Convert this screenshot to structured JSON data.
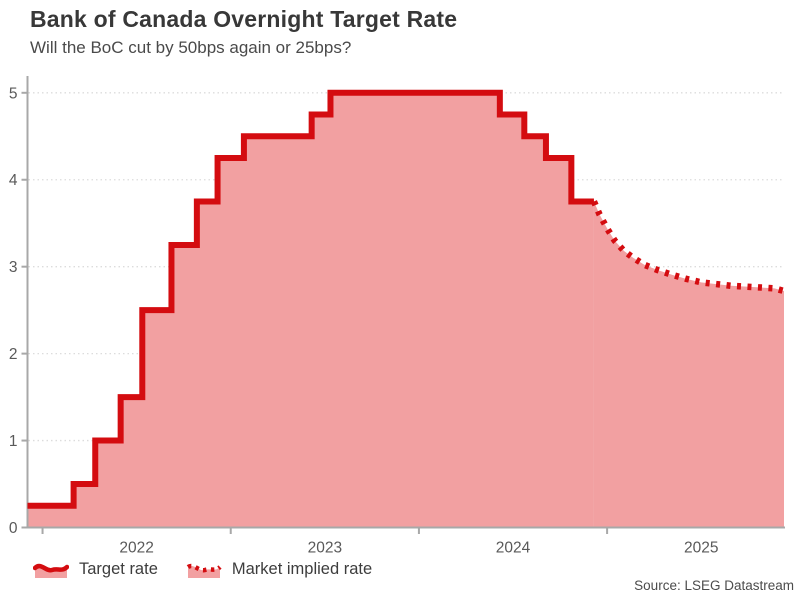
{
  "header": {
    "title": "Bank of Canada Overnight Target Rate",
    "subtitle": "Will the BoC cut by 50bps again or 25bps?"
  },
  "legend": [
    {
      "label": "Target rate",
      "style": "solid"
    },
    {
      "label": "Market implied rate",
      "style": "dotted"
    }
  ],
  "source": "Source: LSEG Datastream",
  "colors": {
    "line_red": "#d40c10",
    "area_pink": "#f2a0a1",
    "axis_gray": "#a8a8a8",
    "grid_gray": "#dcdcdc",
    "tick_text": "#595959"
  },
  "chart_data": {
    "type": "area",
    "title": "Bank of Canada Overnight Target Rate",
    "xlabel": "",
    "ylabel": "",
    "grid": "horizontal-dotted",
    "legend_position": "bottom-left",
    "xlim": [
      2021.92,
      2025.94
    ],
    "ylim": [
      0,
      5
    ],
    "y_ticks": [
      0,
      1,
      2,
      3,
      4,
      5
    ],
    "x_ticks": [
      2022,
      2023,
      2024,
      2025
    ],
    "x_tick_labels": [
      "2022",
      "2023",
      "2024",
      "2025"
    ],
    "x_labels_centered_on_half_year": true,
    "series": [
      {
        "name": "Target rate",
        "style": "solid-step",
        "points": [
          [
            2021.92,
            0.25
          ],
          [
            2022.165,
            0.5
          ],
          [
            2022.28,
            1.0
          ],
          [
            2022.415,
            1.5
          ],
          [
            2022.53,
            2.5
          ],
          [
            2022.685,
            3.25
          ],
          [
            2022.82,
            3.75
          ],
          [
            2022.93,
            4.25
          ],
          [
            2023.07,
            4.5
          ],
          [
            2023.43,
            4.75
          ],
          [
            2023.53,
            5.0
          ],
          [
            2024.43,
            4.75
          ],
          [
            2024.56,
            4.5
          ],
          [
            2024.675,
            4.25
          ],
          [
            2024.81,
            3.75
          ],
          [
            2024.93,
            3.75
          ]
        ]
      },
      {
        "name": "Market implied rate",
        "style": "dotted-line",
        "points": [
          [
            2024.93,
            3.75
          ],
          [
            2024.96,
            3.6
          ],
          [
            2025.0,
            3.44
          ],
          [
            2025.04,
            3.3
          ],
          [
            2025.09,
            3.18
          ],
          [
            2025.14,
            3.1
          ],
          [
            2025.2,
            3.02
          ],
          [
            2025.27,
            2.96
          ],
          [
            2025.34,
            2.91
          ],
          [
            2025.42,
            2.86
          ],
          [
            2025.5,
            2.82
          ],
          [
            2025.58,
            2.8
          ],
          [
            2025.66,
            2.78
          ],
          [
            2025.74,
            2.77
          ],
          [
            2025.82,
            2.76
          ],
          [
            2025.89,
            2.75
          ],
          [
            2025.94,
            2.72
          ]
        ]
      }
    ]
  }
}
